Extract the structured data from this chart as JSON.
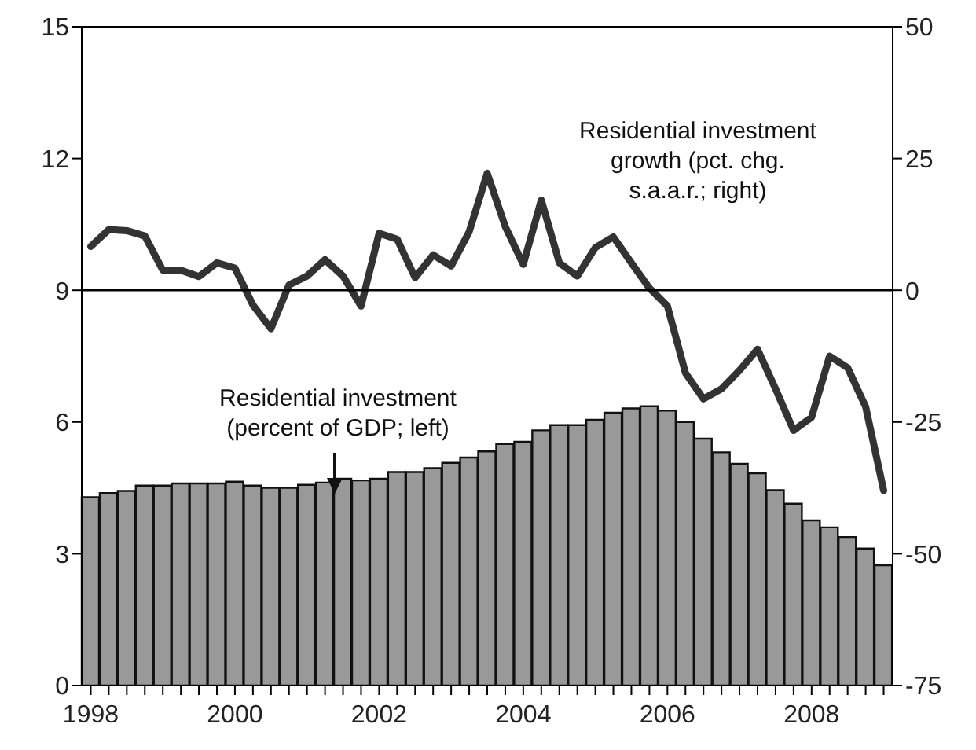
{
  "chart_data": {
    "type": "bar",
    "categories": [
      "1998",
      null,
      null,
      null,
      null,
      null,
      null,
      null,
      "2000",
      null,
      null,
      null,
      null,
      null,
      null,
      null,
      "2002",
      null,
      null,
      null,
      null,
      null,
      null,
      null,
      "2004",
      null,
      null,
      null,
      null,
      null,
      null,
      null,
      "2006",
      null,
      null,
      null,
      null,
      null,
      null,
      null,
      "2008",
      null,
      null,
      null,
      null
    ],
    "series": [
      {
        "color": "#999999",
        "values": [
          4.29,
          4.38,
          4.43,
          4.55,
          4.55,
          4.6,
          4.6,
          4.6,
          4.64,
          4.55,
          4.5,
          4.5,
          4.57,
          4.62,
          4.71,
          4.67,
          4.71,
          4.86,
          4.86,
          4.95,
          5.07,
          5.19,
          5.33,
          5.5,
          5.55,
          5.81,
          5.93,
          5.93,
          6.05,
          6.21,
          6.31,
          6.36,
          6.26,
          6.0,
          5.62,
          5.31,
          5.05,
          4.83,
          4.45,
          4.14,
          3.76,
          3.6,
          3.38,
          3.12,
          2.74
        ]
      },
      {
        "type": "line",
        "axis": "y2",
        "color": "#333333",
        "values": [
          8.3,
          11.5,
          11.3,
          10.3,
          3.8,
          3.8,
          2.6,
          5.2,
          4.2,
          -2.8,
          -7.3,
          1.0,
          2.7,
          5.8,
          2.7,
          -3.0,
          10.8,
          9.7,
          2.4,
          6.7,
          4.6,
          11.1,
          22.2,
          12.1,
          4.9,
          17.1,
          5.2,
          2.7,
          8.1,
          10.1,
          5.2,
          0.4,
          -3.0,
          -15.7,
          -20.6,
          -18.7,
          -15.2,
          -11.2,
          -18.7,
          -26.6,
          -24.1,
          -12.5,
          -14.7,
          -22.1,
          -38.0
        ]
      }
    ],
    "ylim": [
      0,
      15
    ],
    "yticks": [
      0,
      3,
      6,
      9,
      12,
      15
    ],
    "y2lim": [
      -75,
      50
    ],
    "y2ticks": [
      -75,
      -50,
      -25,
      0,
      25,
      50
    ],
    "ref_lines": [
      {
        "axis": "y2",
        "value": 0,
        "color": "#000000"
      }
    ],
    "annotations": [
      "Residential investment\ngrowth (pct. chg.\ns.a.a.r.; right)",
      "Residential investment\n(percent of GDP; left)"
    ],
    "grid": false,
    "legend": false,
    "marker": "none",
    "line_style": "solid"
  }
}
